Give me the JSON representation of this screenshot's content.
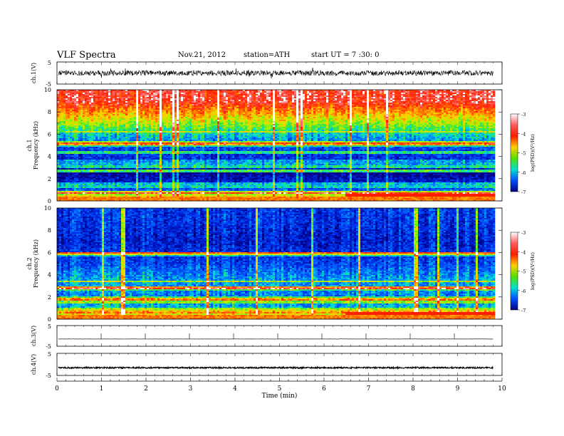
{
  "header": {
    "title": "VLF Spectra",
    "date": "Nov.21, 2012",
    "station": "station=ATH",
    "start": "start UT = 7 :30: 0"
  },
  "colorbar": {
    "label": "log(PSD)(V²/Hz)",
    "ticks": [
      "-3",
      "-4",
      "-5",
      "-6",
      "-7"
    ],
    "colors": [
      "#ffffff",
      "#ff5a5a",
      "#ff1e00",
      "#ffd000",
      "#52e000",
      "#00e0d0",
      "#0050ff",
      "#000080"
    ]
  },
  "chart_data": [
    {
      "type": "line",
      "panel": "ch.1 waveform",
      "ylabel": "ch.1(V)",
      "ylim": [
        -5,
        5
      ],
      "yticks": [
        "5",
        "-5"
      ],
      "description_values": {
        "mean": 0,
        "typical_amplitude": 1.2,
        "max_spike": 2.5
      }
    },
    {
      "type": "heatmap",
      "panel": "ch.1 spectrogram",
      "ylabel": "ch.1 Frequency (kHz)",
      "ylim": [
        0,
        10
      ],
      "yticks": [
        "0",
        "2",
        "4",
        "6",
        "8",
        "10"
      ],
      "clim": [
        -7,
        -3
      ],
      "levels": [
        {
          "f": 9.0,
          "psd": -3.4
        },
        {
          "f": 7.0,
          "psd": -4.8
        },
        {
          "f": 6.0,
          "psd": -5.6
        },
        {
          "f": 4.5,
          "psd": -6.4
        },
        {
          "f": 3.0,
          "psd": -6.6
        },
        {
          "f": 2.5,
          "psd": -7.0
        },
        {
          "f": 1.0,
          "psd": -6.2
        },
        {
          "f": 0.5,
          "psd": -4.5
        }
      ]
    },
    {
      "type": "heatmap",
      "panel": "ch.2 spectrogram",
      "ylabel": "ch.2 Frequency (kHz)",
      "ylim": [
        0,
        10
      ],
      "yticks": [
        "0",
        "2",
        "4",
        "6",
        "8",
        "10"
      ],
      "clim": [
        -7,
        -3
      ],
      "levels": [
        {
          "f": 9.0,
          "psd": -6.4
        },
        {
          "f": 7.0,
          "psd": -6.6
        },
        {
          "f": 5.0,
          "psd": -6.3
        },
        {
          "f": 3.5,
          "psd": -5.8
        },
        {
          "f": 2.0,
          "psd": -6.0
        },
        {
          "f": 1.0,
          "psd": -5.7
        },
        {
          "f": 0.5,
          "psd": -4.5
        }
      ]
    },
    {
      "type": "line",
      "panel": "ch.3 waveform",
      "ylabel": "ch.3(V)",
      "ylim": [
        -5,
        5
      ],
      "yticks": [
        "5",
        "-5"
      ],
      "description_values": {
        "mean": -1.5,
        "typical_amplitude": 0.05
      }
    },
    {
      "type": "line",
      "panel": "ch.4 waveform",
      "ylabel": "ch.4(V)",
      "ylim": [
        -5,
        5
      ],
      "yticks": [
        "5",
        "-5"
      ],
      "description_values": {
        "mean": -1.5,
        "typical_amplitude": 0.3
      }
    },
    {
      "type": "axis",
      "xlabel": "Time (min)",
      "xlim": [
        0,
        10
      ],
      "xticks": [
        "0",
        "1",
        "2",
        "3",
        "4",
        "5",
        "6",
        "7",
        "8",
        "9",
        "10"
      ],
      "data_end_min": 9.8
    }
  ]
}
